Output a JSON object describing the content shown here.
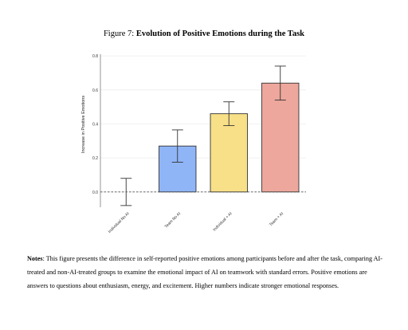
{
  "figure": {
    "label": "Figure 7:",
    "title": "Evolution of Positive Emotions during the Task"
  },
  "chart_data": {
    "type": "bar",
    "categories": [
      "Individual No AI",
      "Team No AI",
      "Individual + AI",
      "Team + AI"
    ],
    "values": [
      0.0,
      0.27,
      0.46,
      0.64
    ],
    "errors": [
      0.08,
      0.095,
      0.07,
      0.1
    ],
    "colors": [
      "#ffffff",
      "#8fb5f7",
      "#f8e088",
      "#eda79c"
    ],
    "ylabel": "Increase in Positive Emotions",
    "xlabel": "",
    "ylim": [
      -0.09,
      0.81
    ],
    "yticks": [
      0.0,
      0.2,
      0.4,
      0.6,
      0.8
    ],
    "ytick_labels": [
      "0.0",
      "0.2",
      "0.4",
      "0.6",
      "0.8"
    ],
    "reference_line": 0.0,
    "grid": "horizontal"
  },
  "notes": {
    "label": "Notes",
    "text": ": This figure presents the difference in self-reported positive emotions among participants before and after the task, comparing AI-treated and non-AI-treated groups to examine the emotional impact of AI on teamwork with standard errors. Positive emotions are answers to questions about enthusiasm, energy, and excitement. Higher numbers indicate stronger emotional responses."
  }
}
